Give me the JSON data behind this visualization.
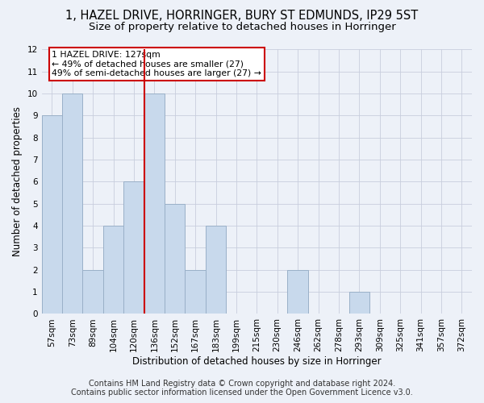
{
  "title": "1, HAZEL DRIVE, HORRINGER, BURY ST EDMUNDS, IP29 5ST",
  "subtitle": "Size of property relative to detached houses in Horringer",
  "xlabel": "Distribution of detached houses by size in Horringer",
  "ylabel": "Number of detached properties",
  "categories": [
    "57sqm",
    "73sqm",
    "89sqm",
    "104sqm",
    "120sqm",
    "136sqm",
    "152sqm",
    "167sqm",
    "183sqm",
    "199sqm",
    "215sqm",
    "230sqm",
    "246sqm",
    "262sqm",
    "278sqm",
    "293sqm",
    "309sqm",
    "325sqm",
    "341sqm",
    "357sqm",
    "372sqm"
  ],
  "values": [
    9,
    10,
    2,
    4,
    6,
    10,
    5,
    2,
    4,
    0,
    0,
    0,
    2,
    0,
    0,
    1,
    0,
    0,
    0,
    0,
    0
  ],
  "bar_color": "#c8d9ec",
  "bar_edge_color": "#9ab0c8",
  "ylim": [
    0,
    12
  ],
  "yticks": [
    0,
    1,
    2,
    3,
    4,
    5,
    6,
    7,
    8,
    9,
    10,
    11,
    12
  ],
  "property_label": "1 HAZEL DRIVE: 127sqm",
  "annotation_line1": "← 49% of detached houses are smaller (27)",
  "annotation_line2": "49% of semi-detached houses are larger (27) →",
  "annotation_box_facecolor": "#ffffff",
  "annotation_box_edgecolor": "#cc0000",
  "property_line_color": "#cc0000",
  "footer_line1": "Contains HM Land Registry data © Crown copyright and database right 2024.",
  "footer_line2": "Contains public sector information licensed under the Open Government Licence v3.0.",
  "background_color": "#edf1f8",
  "plot_background_color": "#edf1f8",
  "grid_color": "#c8cedd",
  "title_fontsize": 10.5,
  "subtitle_fontsize": 9.5,
  "xlabel_fontsize": 8.5,
  "ylabel_fontsize": 8.5,
  "tick_fontsize": 7.5,
  "annot_fontsize": 7.8,
  "footer_fontsize": 7.0
}
